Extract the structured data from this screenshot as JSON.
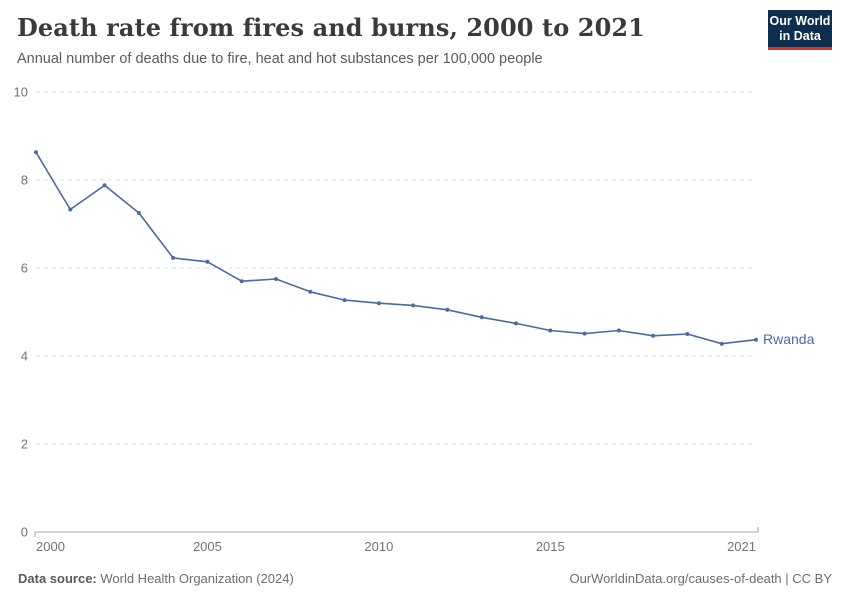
{
  "logo": {
    "line1": "Our World",
    "line2": "in Data",
    "bg_color": "#0d2e4e",
    "accent_color": "#d7342c"
  },
  "chart_data": {
    "type": "line",
    "title": "Death rate from fires and burns, 2000 to 2021",
    "subtitle": "Annual number of deaths due to fire, heat and hot substances per 100,000 people",
    "xlabel": "",
    "ylabel": "",
    "x": [
      2000,
      2001,
      2002,
      2003,
      2004,
      2005,
      2006,
      2007,
      2008,
      2009,
      2010,
      2011,
      2012,
      2013,
      2014,
      2015,
      2016,
      2017,
      2018,
      2019,
      2020,
      2021
    ],
    "series": [
      {
        "name": "Rwanda",
        "color": "#4c6aa2",
        "values": [
          8.63,
          7.33,
          7.88,
          7.25,
          6.23,
          6.14,
          5.7,
          5.75,
          5.46,
          5.27,
          5.2,
          5.15,
          5.05,
          4.88,
          4.74,
          4.58,
          4.51,
          4.58,
          4.46,
          4.5,
          4.28,
          4.37
        ]
      }
    ],
    "xticks": [
      2000,
      2005,
      2010,
      2015,
      2021
    ],
    "yticks": [
      0,
      2,
      4,
      6,
      8,
      10
    ],
    "xlim": [
      2000,
      2021
    ],
    "ylim": [
      0,
      10
    ],
    "grid": "horizontal-dashed",
    "gridline_color": "#dcdcdc",
    "axis_line_color": "#a3a3a3",
    "tick_label_color": "#737373",
    "legend": "end-of-line-label"
  },
  "footer": {
    "source_label": "Data source:",
    "source_value": " World Health Organization (2024)",
    "attribution": "OurWorldinData.org/causes-of-death | CC BY"
  }
}
